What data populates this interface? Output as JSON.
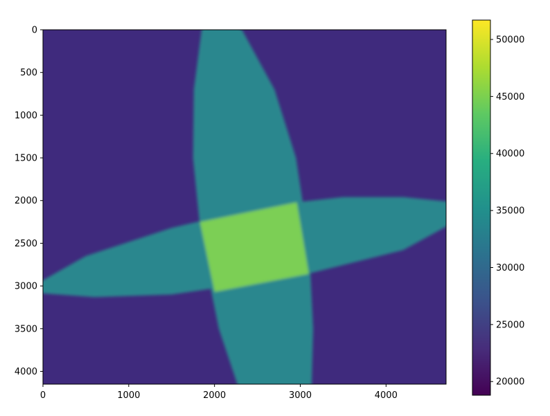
{
  "chart_data": {
    "type": "heatmap",
    "title": "",
    "xlabel": "",
    "ylabel": "",
    "x_range": [
      0,
      4700
    ],
    "y_range": [
      0,
      4150
    ],
    "y_inverted": true,
    "x_ticks": [
      0,
      1000,
      2000,
      3000,
      4000
    ],
    "y_ticks": [
      0,
      500,
      1000,
      1500,
      2000,
      2500,
      3000,
      3500,
      4000
    ],
    "colorbar": {
      "colormap": "viridis",
      "range": [
        18800,
        51700
      ],
      "ticks": [
        20000,
        25000,
        30000,
        35000,
        40000,
        45000,
        50000
      ]
    },
    "regions": [
      {
        "name": "background",
        "value": 22500
      },
      {
        "name": "vertical-band",
        "value": 32500,
        "outline": [
          [
            2150,
            -100
          ],
          [
            2320,
            0
          ],
          [
            2700,
            700
          ],
          [
            2950,
            1500
          ],
          [
            3100,
            2500
          ],
          [
            3150,
            3500
          ],
          [
            3130,
            4250
          ],
          [
            2300,
            4250
          ],
          [
            2050,
            3500
          ],
          [
            1850,
            2500
          ],
          [
            1750,
            1500
          ],
          [
            1760,
            700
          ],
          [
            1850,
            0
          ],
          [
            1930,
            -100
          ]
        ]
      },
      {
        "name": "horizontal-band",
        "value": 32500,
        "outline": [
          [
            -100,
            2990
          ],
          [
            500,
            2650
          ],
          [
            1500,
            2320
          ],
          [
            2600,
            2060
          ],
          [
            3500,
            1960
          ],
          [
            4200,
            1960
          ],
          [
            4800,
            2020
          ],
          [
            4800,
            2250
          ],
          [
            4200,
            2580
          ],
          [
            3000,
            2880
          ],
          [
            1500,
            3100
          ],
          [
            600,
            3130
          ],
          [
            -100,
            3080
          ]
        ]
      },
      {
        "name": "overlap",
        "value": 42500,
        "outline": [
          [
            1830,
            2250
          ],
          [
            2960,
            2020
          ],
          [
            3100,
            2860
          ],
          [
            2000,
            3070
          ]
        ]
      }
    ],
    "colors": {
      "background": "#3f2a7d",
      "band": "#2c878e",
      "overlap": "#7bcf55"
    }
  }
}
